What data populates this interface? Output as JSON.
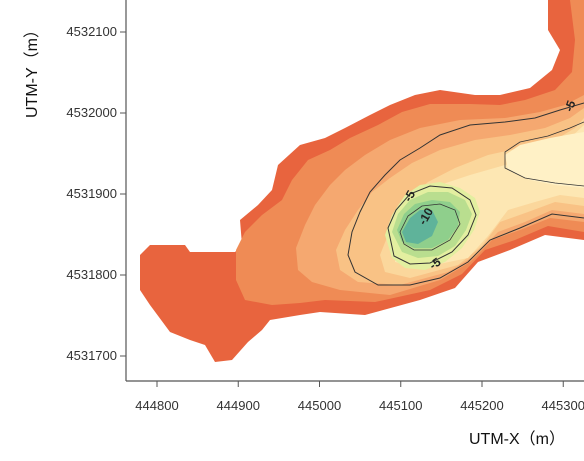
{
  "chart_data": {
    "type": "contour",
    "title": "",
    "xlabel": "UTM-X（m）",
    "ylabel": "UTM-Y（m）",
    "x_ticks": [
      444800,
      444900,
      445000,
      445100,
      445200,
      445300
    ],
    "x_tick_labels": [
      "444800",
      "444900",
      "445000",
      "445100",
      "445200",
      "445300"
    ],
    "y_ticks": [
      4531700,
      4531800,
      4531900,
      4532000,
      4532100
    ],
    "y_tick_labels": [
      "4531700",
      "4531800",
      "4531900",
      "4532000",
      "4532100"
    ],
    "xlim": [
      444760,
      445335
    ],
    "ylim": [
      4531665,
      4532140
    ],
    "grid": false,
    "contour_labels": [
      {
        "text": "-5",
        "x": 445115,
        "y": 4531895,
        "rotate": -60
      },
      {
        "text": "-10",
        "x": 445135,
        "y": 4531870,
        "rotate": -60
      },
      {
        "text": "-5",
        "x": 445145,
        "y": 4531810,
        "rotate": -35
      },
      {
        "text": "-5",
        "x": 445313,
        "y": 4532007,
        "rotate": -70
      }
    ],
    "colors": {
      "outer": "#e8643e",
      "zone2": "#ef8b55",
      "zone3": "#f5a870",
      "zone4": "#f9c285",
      "zone5": "#fbd79c",
      "zone6": "#fde7b3",
      "zone7": "#fff1c6",
      "pit1": "#e3efa0",
      "pit2": "#b9de8f",
      "pit3": "#8fcf8c",
      "pit4": "#5fb39a"
    }
  }
}
